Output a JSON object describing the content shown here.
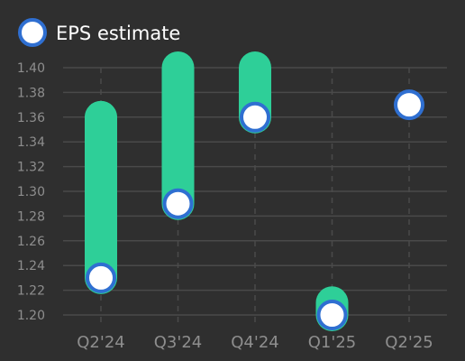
{
  "colors": {
    "background": "#2f2f2f",
    "gridline": "#4a4a4a",
    "range_bar": "#2ecf98",
    "marker_fill": "#ffffff",
    "marker_stroke": "#2f6fd1",
    "axis_text": "#8e8e8e",
    "legend_text": "#ffffff"
  },
  "legend": {
    "label": "EPS estimate"
  },
  "chart_data": {
    "type": "range-bar",
    "categories": [
      "Q2'24",
      "Q3'24",
      "Q4'24",
      "Q1'25",
      "Q2'25"
    ],
    "ylim": [
      1.2,
      1.4
    ],
    "yticks": [
      "1.20",
      "1.22",
      "1.24",
      "1.26",
      "1.28",
      "1.30",
      "1.32",
      "1.34",
      "1.36",
      "1.38",
      "1.40"
    ],
    "grid": true,
    "legend_position": "top-left",
    "series": [
      {
        "name": "EPS estimate",
        "values": [
          1.23,
          1.29,
          1.36,
          1.2,
          1.37
        ]
      },
      {
        "values": [
          1.36,
          1.4,
          1.4,
          1.21,
          null
        ]
      }
    ]
  }
}
